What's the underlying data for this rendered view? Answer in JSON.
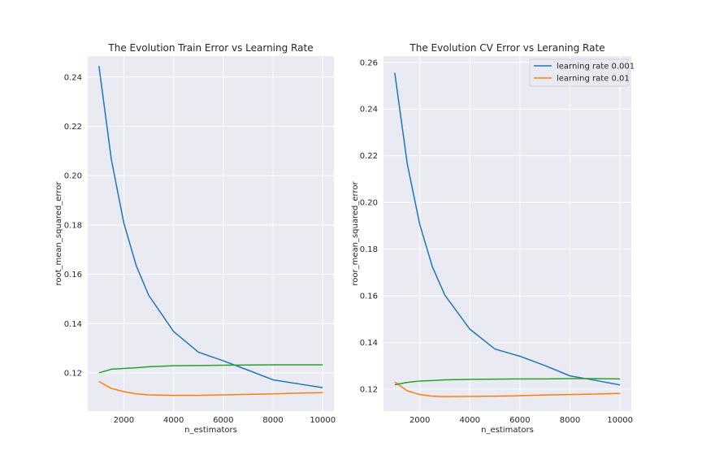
{
  "chart_data": [
    {
      "type": "line",
      "title": "The Evolution Train Error vs Learning Rate",
      "xlabel": "n_estimators",
      "ylabel": "root_mean_squared_error",
      "xlim": [
        550,
        10450
      ],
      "ylim": [
        0.1045,
        0.2485
      ],
      "xticks": [
        2000,
        4000,
        6000,
        8000,
        10000
      ],
      "yticks": [
        0.12,
        0.14,
        0.16,
        0.18,
        0.2,
        0.22,
        0.24
      ],
      "ytick_labels": [
        "0.12",
        "0.14",
        "0.16",
        "0.18",
        "0.20",
        "0.22",
        "0.24"
      ],
      "grid": true,
      "legend": null,
      "series": [
        {
          "color": "#1f77b4",
          "x": [
            1000,
            1500,
            2000,
            2500,
            3000,
            4000,
            5000,
            6000,
            7000,
            8000,
            9000,
            10000
          ],
          "y": [
            0.2445,
            0.2065,
            0.1808,
            0.1635,
            0.1515,
            0.1368,
            0.1284,
            0.1249,
            0.1211,
            0.1172,
            0.1156,
            0.114
          ]
        },
        {
          "color": "#ff7f0e",
          "x": [
            1000,
            1500,
            2000,
            2500,
            3000,
            4000,
            5000,
            6000,
            7000,
            8000,
            9000,
            10000
          ],
          "y": [
            0.1165,
            0.1137,
            0.1124,
            0.1115,
            0.1111,
            0.1109,
            0.1109,
            0.1111,
            0.1113,
            0.1115,
            0.1118,
            0.112
          ]
        },
        {
          "color": "#2ca02c",
          "x": [
            1000,
            1500,
            2000,
            2500,
            3000,
            4000,
            5000,
            6000,
            7000,
            8000,
            9000,
            10000
          ],
          "y": [
            0.12,
            0.1215,
            0.1218,
            0.1221,
            0.1225,
            0.1229,
            0.123,
            0.1231,
            0.1232,
            0.1233,
            0.1233,
            0.1233
          ]
        }
      ]
    },
    {
      "type": "line",
      "title": "The Evolution CV Error vs Leraning Rate",
      "xlabel": "n_estimators",
      "ylabel": "roor_mean_squared_error",
      "xlim": [
        550,
        10450
      ],
      "ylim": [
        0.1106,
        0.2627
      ],
      "xticks": [
        2000,
        4000,
        6000,
        8000,
        10000
      ],
      "yticks": [
        0.12,
        0.14,
        0.16,
        0.18,
        0.2,
        0.22,
        0.24,
        0.26
      ],
      "ytick_labels": [
        "0.12",
        "0.14",
        "0.16",
        "0.18",
        "0.20",
        "0.22",
        "0.24",
        "0.26"
      ],
      "grid": true,
      "legend": "top-right",
      "series": [
        {
          "name": "learning rate 0.001",
          "color": "#1f77b4",
          "x": [
            1000,
            1500,
            2000,
            2500,
            3000,
            4000,
            5000,
            6000,
            7000,
            8000,
            9000,
            10000
          ],
          "y": [
            0.2555,
            0.2165,
            0.1905,
            0.1725,
            0.1603,
            0.1457,
            0.1372,
            0.1341,
            0.1301,
            0.1257,
            0.1238,
            0.1218
          ]
        },
        {
          "name": "learning rate 0.01",
          "color": "#ff7f0e",
          "x": [
            1000,
            1500,
            2000,
            2500,
            3000,
            4000,
            5000,
            6000,
            7000,
            8000,
            9000,
            10000
          ],
          "y": [
            0.1231,
            0.1193,
            0.1177,
            0.117,
            0.1168,
            0.1169,
            0.117,
            0.1172,
            0.1175,
            0.1177,
            0.1179,
            0.1182
          ]
        },
        {
          "color": "#2ca02c",
          "x": [
            1000,
            1500,
            2000,
            2500,
            3000,
            4000,
            5000,
            6000,
            7000,
            8000,
            9000,
            10000
          ],
          "y": [
            0.1219,
            0.1229,
            0.1235,
            0.1237,
            0.124,
            0.1242,
            0.1243,
            0.1244,
            0.1244,
            0.1245,
            0.1245,
            0.1244
          ]
        }
      ]
    }
  ]
}
